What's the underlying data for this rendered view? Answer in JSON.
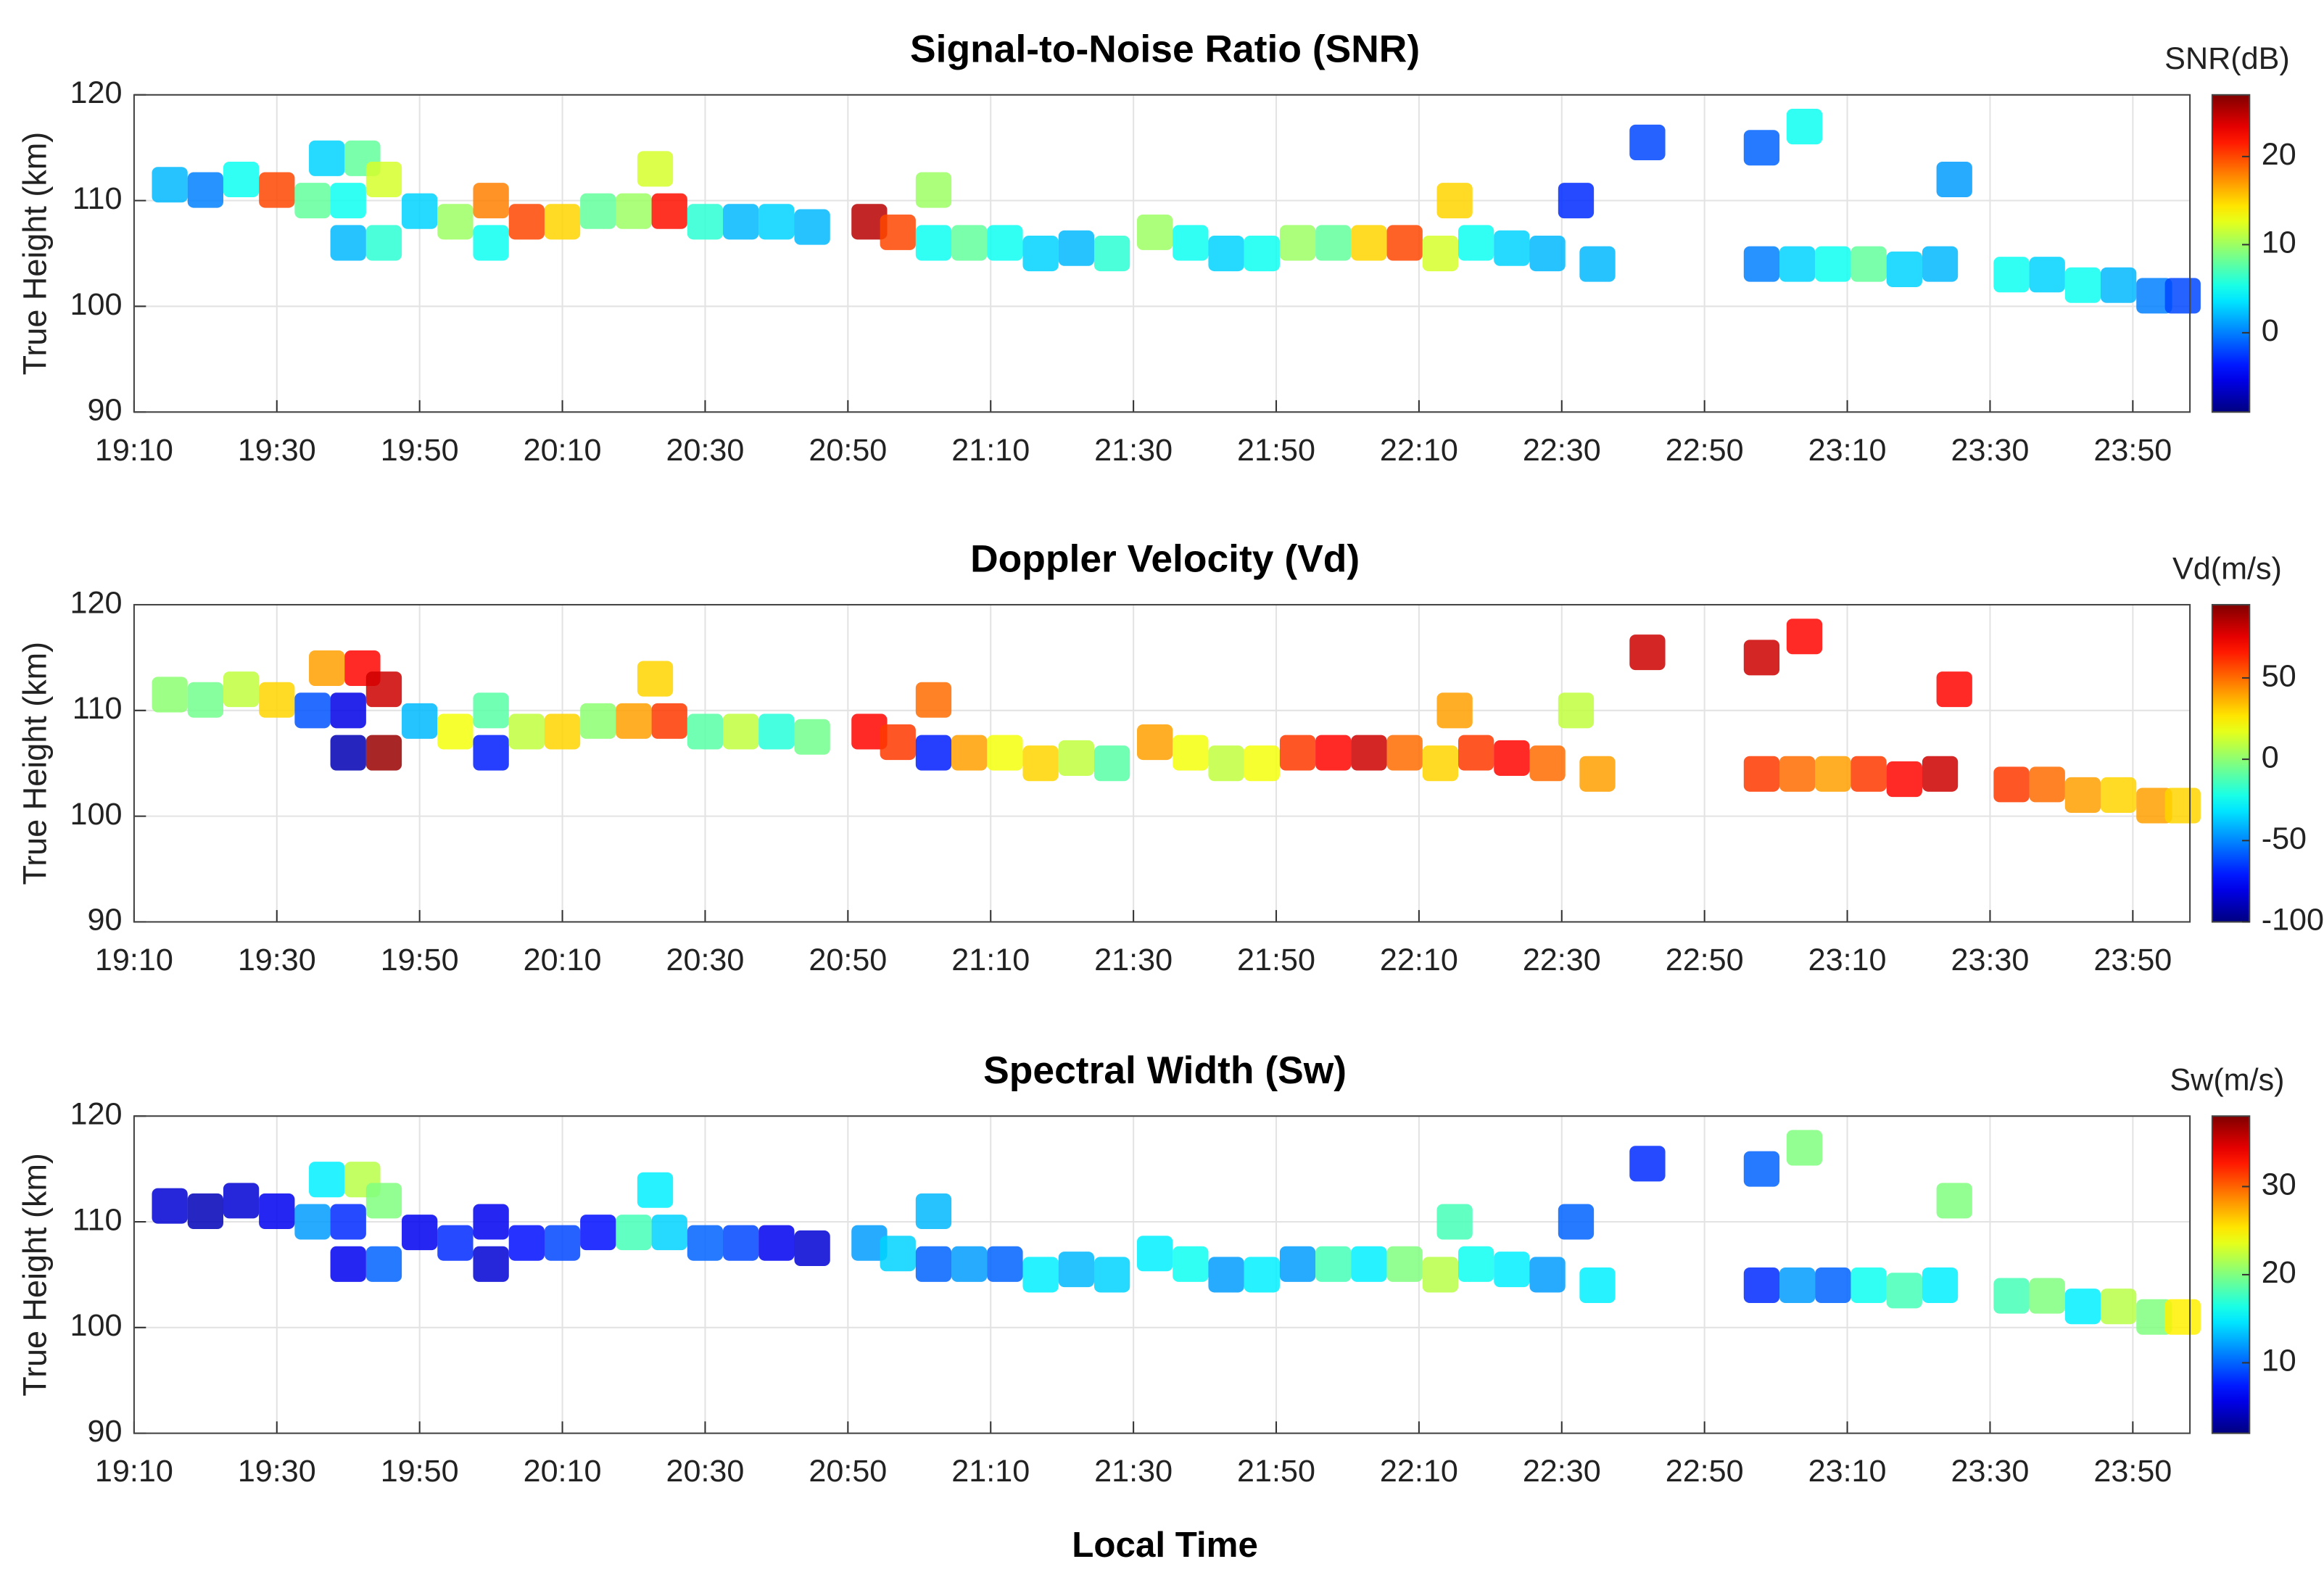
{
  "chart_data": [
    {
      "type": "scatter",
      "title": "Signal-to-Noise Ratio (SNR)",
      "ylabel": "True Height (km)",
      "colorbar_label": "SNR(dB)",
      "colormap": "jet",
      "grid": true,
      "xlim": [
        "19:10",
        "23:58"
      ],
      "xticks": [
        "19:10",
        "19:30",
        "19:50",
        "20:10",
        "20:30",
        "20:50",
        "21:10",
        "21:30",
        "21:50",
        "22:10",
        "22:30",
        "22:50",
        "23:10",
        "23:30",
        "23:50"
      ],
      "ylim": [
        90,
        120
      ],
      "yticks": [
        90,
        100,
        110,
        120
      ],
      "clim": [
        -9,
        27
      ],
      "cticks": [
        0,
        10,
        20
      ],
      "x": [
        "19:15",
        "19:20",
        "19:25",
        "19:30",
        "19:35",
        "19:37",
        "19:40",
        "19:40",
        "19:42",
        "19:45",
        "19:45",
        "19:50",
        "19:55",
        "20:00",
        "20:00",
        "20:05",
        "20:10",
        "20:15",
        "20:20",
        "20:23",
        "20:25",
        "20:30",
        "20:35",
        "20:40",
        "20:45",
        "20:53",
        "20:57",
        "21:02",
        "21:02",
        "21:07",
        "21:12",
        "21:17",
        "21:22",
        "21:27",
        "21:33",
        "21:38",
        "21:43",
        "21:48",
        "21:53",
        "21:58",
        "22:03",
        "22:08",
        "22:13",
        "22:15",
        "22:18",
        "22:23",
        "22:28",
        "22:32",
        "22:35",
        "22:42",
        "22:58",
        "23:04",
        "22:58",
        "23:03",
        "23:08",
        "23:13",
        "23:18",
        "23:23",
        "23:25",
        "23:33",
        "23:38",
        "23:43",
        "23:48",
        "23:53",
        "23:57"
      ],
      "y": [
        111.5,
        111,
        112,
        111,
        110,
        114,
        110,
        106,
        114,
        112,
        106,
        109,
        108,
        110,
        106,
        108,
        108,
        109,
        109,
        113,
        109,
        108,
        108,
        108,
        107.5,
        108,
        107,
        111,
        106,
        106,
        106,
        105,
        105.5,
        105,
        107,
        106,
        105,
        105,
        106,
        106,
        106,
        106,
        105,
        110,
        106,
        105.5,
        105,
        110,
        104,
        115.5,
        115,
        117,
        104,
        104,
        104,
        104,
        103.5,
        104,
        112,
        103,
        103,
        102,
        102,
        101,
        101
      ],
      "values": [
        2,
        0,
        5,
        20,
        8,
        3,
        5,
        2,
        8,
        12,
        6,
        3,
        10,
        18,
        5,
        20,
        15,
        8,
        10,
        12,
        22,
        6,
        2,
        3,
        2,
        25,
        20,
        10,
        5,
        8,
        5,
        3,
        2,
        6,
        10,
        5,
        3,
        5,
        10,
        8,
        15,
        20,
        12,
        15,
        5,
        3,
        2,
        -3,
        2,
        -2,
        -1,
        5,
        0,
        3,
        5,
        8,
        3,
        2,
        1,
        5,
        3,
        5,
        2,
        0,
        -2
      ]
    },
    {
      "type": "scatter",
      "title": "Doppler Velocity (Vd)",
      "ylabel": "True Height (km)",
      "colorbar_label": "Vd(m/s)",
      "colormap": "jet",
      "grid": true,
      "xlim": [
        "19:10",
        "23:58"
      ],
      "xticks": [
        "19:10",
        "19:30",
        "19:50",
        "20:10",
        "20:30",
        "20:50",
        "21:10",
        "21:30",
        "21:50",
        "22:10",
        "22:30",
        "22:50",
        "23:10",
        "23:30",
        "23:50"
      ],
      "ylim": [
        90,
        120
      ],
      "yticks": [
        90,
        100,
        110,
        120
      ],
      "clim": [
        -100,
        95
      ],
      "cticks": [
        -100,
        -50,
        0,
        50
      ],
      "x": [
        "19:15",
        "19:20",
        "19:25",
        "19:30",
        "19:35",
        "19:37",
        "19:40",
        "19:40",
        "19:42",
        "19:45",
        "19:45",
        "19:50",
        "19:55",
        "20:00",
        "20:00",
        "20:05",
        "20:10",
        "20:15",
        "20:20",
        "20:23",
        "20:25",
        "20:30",
        "20:35",
        "20:40",
        "20:45",
        "20:53",
        "20:57",
        "21:02",
        "21:02",
        "21:07",
        "21:12",
        "21:17",
        "21:22",
        "21:27",
        "21:33",
        "21:38",
        "21:43",
        "21:48",
        "21:53",
        "21:58",
        "22:03",
        "22:08",
        "22:13",
        "22:15",
        "22:18",
        "22:23",
        "22:28",
        "22:32",
        "22:35",
        "22:42",
        "22:58",
        "23:04",
        "22:58",
        "23:03",
        "23:08",
        "23:13",
        "23:18",
        "23:23",
        "23:25",
        "23:33",
        "23:38",
        "23:43",
        "23:48",
        "23:53",
        "23:57"
      ],
      "y": [
        111.5,
        111,
        112,
        111,
        110,
        114,
        110,
        106,
        114,
        112,
        106,
        109,
        108,
        110,
        106,
        108,
        108,
        109,
        109,
        113,
        109,
        108,
        108,
        108,
        107.5,
        108,
        107,
        111,
        106,
        106,
        106,
        105,
        105.5,
        105,
        107,
        106,
        105,
        105,
        106,
        106,
        106,
        106,
        105,
        110,
        106,
        105.5,
        105,
        110,
        104,
        115.5,
        115,
        117,
        104,
        104,
        104,
        104,
        103.5,
        104,
        112,
        103,
        103,
        102,
        102,
        101,
        101
      ],
      "values": [
        0,
        -5,
        10,
        30,
        -60,
        40,
        -80,
        -90,
        70,
        80,
        90,
        -40,
        20,
        -10,
        -70,
        10,
        30,
        0,
        40,
        30,
        60,
        -10,
        10,
        -20,
        -5,
        70,
        60,
        50,
        -70,
        40,
        20,
        30,
        10,
        -10,
        40,
        20,
        10,
        20,
        60,
        70,
        80,
        50,
        30,
        40,
        60,
        70,
        50,
        10,
        40,
        80,
        80,
        70,
        60,
        50,
        40,
        60,
        70,
        80,
        70,
        60,
        50,
        40,
        30,
        40,
        30
      ]
    },
    {
      "type": "scatter",
      "title": "Spectral Width (Sw)",
      "ylabel": "True Height (km)",
      "xlabel": "Local Time",
      "colorbar_label": "Sw(m/s)",
      "colormap": "jet",
      "grid": true,
      "xlim": [
        "19:10",
        "23:58"
      ],
      "xticks": [
        "19:10",
        "19:30",
        "19:50",
        "20:10",
        "20:30",
        "20:50",
        "21:10",
        "21:30",
        "21:50",
        "22:10",
        "22:30",
        "22:50",
        "23:10",
        "23:30",
        "23:50"
      ],
      "ylim": [
        90,
        120
      ],
      "yticks": [
        90,
        100,
        110,
        120
      ],
      "clim": [
        2,
        38
      ],
      "cticks": [
        10,
        20,
        30
      ],
      "x": [
        "19:15",
        "19:20",
        "19:25",
        "19:30",
        "19:35",
        "19:37",
        "19:40",
        "19:40",
        "19:42",
        "19:45",
        "19:45",
        "19:50",
        "19:55",
        "20:00",
        "20:00",
        "20:05",
        "20:10",
        "20:15",
        "20:20",
        "20:23",
        "20:25",
        "20:30",
        "20:35",
        "20:40",
        "20:45",
        "20:53",
        "20:57",
        "21:02",
        "21:02",
        "21:07",
        "21:12",
        "21:17",
        "21:22",
        "21:27",
        "21:33",
        "21:38",
        "21:43",
        "21:48",
        "21:53",
        "21:58",
        "22:03",
        "22:08",
        "22:13",
        "22:15",
        "22:18",
        "22:23",
        "22:28",
        "22:32",
        "22:35",
        "22:42",
        "22:58",
        "23:04",
        "22:58",
        "23:03",
        "23:08",
        "23:13",
        "23:18",
        "23:23",
        "23:25",
        "23:33",
        "23:38",
        "23:43",
        "23:48",
        "23:53",
        "23:57"
      ],
      "y": [
        111.5,
        111,
        112,
        111,
        110,
        114,
        110,
        106,
        114,
        112,
        106,
        109,
        108,
        110,
        106,
        108,
        108,
        109,
        109,
        113,
        109,
        108,
        108,
        108,
        107.5,
        108,
        107,
        111,
        106,
        106,
        106,
        105,
        105.5,
        105,
        107,
        106,
        105,
        105,
        106,
        106,
        106,
        106,
        105,
        110,
        106,
        105.5,
        105,
        110,
        104,
        115.5,
        115,
        117,
        104,
        104,
        104,
        104,
        103.5,
        104,
        112,
        103,
        103,
        102,
        102,
        101,
        101
      ],
      "values": [
        5,
        4,
        5,
        6,
        12,
        15,
        8,
        6,
        22,
        20,
        10,
        6,
        8,
        6,
        5,
        7,
        9,
        7,
        18,
        15,
        14,
        10,
        9,
        6,
        5,
        12,
        14,
        13,
        10,
        12,
        10,
        15,
        13,
        14,
        15,
        16,
        12,
        15,
        12,
        18,
        15,
        20,
        22,
        18,
        16,
        15,
        12,
        10,
        15,
        8,
        10,
        20,
        8,
        12,
        10,
        16,
        18,
        15,
        20,
        18,
        20,
        15,
        22,
        20,
        25
      ]
    }
  ]
}
